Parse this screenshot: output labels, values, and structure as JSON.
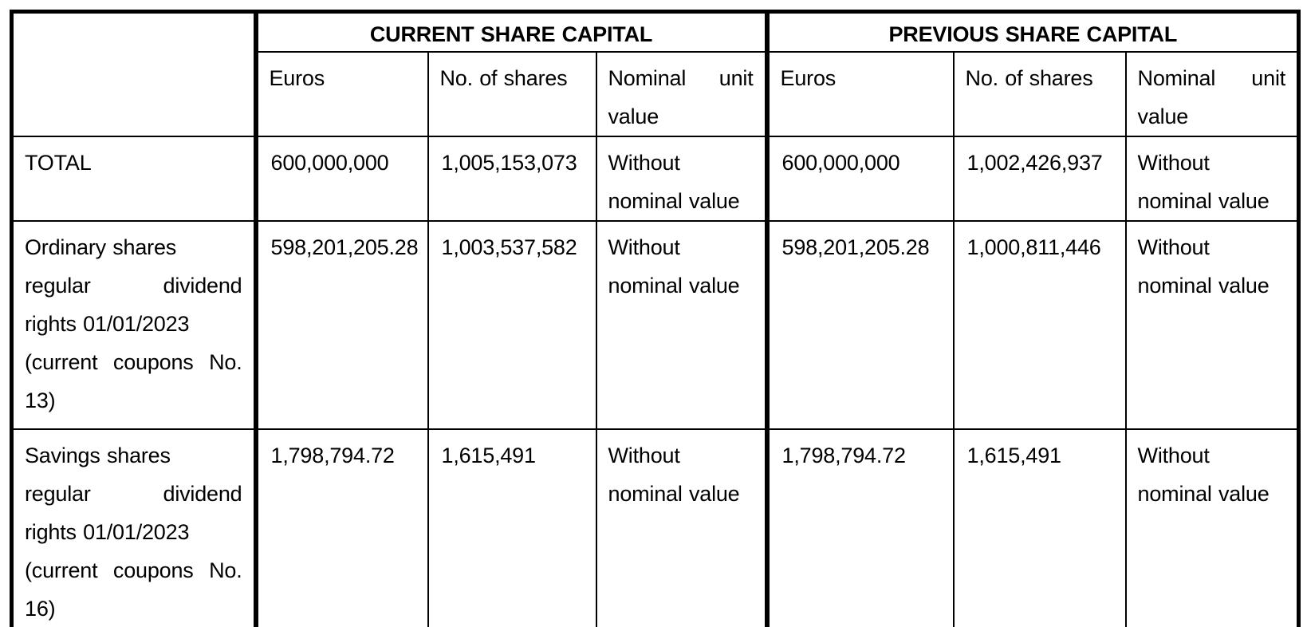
{
  "table": {
    "sections": [
      {
        "title": "CURRENT SHARE CAPITAL",
        "col_euros": "Euros",
        "col_shares": "No. of shares",
        "col_nominal_lines": [
          {
            "t": "Nominal unit",
            "j": true
          },
          {
            "t": "value",
            "j": false
          }
        ]
      },
      {
        "title": "PREVIOUS SHARE CAPITAL",
        "col_euros": "Euros",
        "col_shares": "No. of shares",
        "col_nominal_lines": [
          {
            "t": "Nominal unit",
            "j": true
          },
          {
            "t": "value",
            "j": false
          }
        ]
      }
    ],
    "rows": [
      {
        "label_lines": [
          {
            "t": "TOTAL",
            "j": false
          }
        ],
        "current": {
          "euros": "600,000,000",
          "shares": "1,005,153,073",
          "nominal_lines": [
            {
              "t": "Without",
              "j": false
            },
            {
              "t": "nominal value",
              "j": false
            }
          ]
        },
        "previous": {
          "euros": "600,000,000",
          "shares": "1,002,426,937",
          "nominal_lines": [
            {
              "t": "Without",
              "j": false
            },
            {
              "t": "nominal value",
              "j": false
            }
          ]
        }
      },
      {
        "label_lines": [
          {
            "t": "Ordinary shares",
            "j": false
          },
          {
            "t": "regular dividend",
            "j": true
          },
          {
            "t": "rights 01/01/2023",
            "j": false
          },
          {
            "t": "(current coupons No.",
            "j": true
          },
          {
            "t": "13)",
            "j": false
          }
        ],
        "current": {
          "euros": "598,201,205.28",
          "shares": "1,003,537,582",
          "nominal_lines": [
            {
              "t": "Without",
              "j": false
            },
            {
              "t": "nominal value",
              "j": false
            }
          ]
        },
        "previous": {
          "euros": "598,201,205.28",
          "shares": "1,000,811,446",
          "nominal_lines": [
            {
              "t": "Without",
              "j": false
            },
            {
              "t": "nominal value",
              "j": false
            }
          ]
        }
      },
      {
        "label_lines": [
          {
            "t": "Savings shares",
            "j": false
          },
          {
            "t": "regular dividend",
            "j": true
          },
          {
            "t": "rights 01/01/2023",
            "j": false
          },
          {
            "t": "(current coupons No.",
            "j": true
          },
          {
            "t": "16)",
            "j": false
          }
        ],
        "current": {
          "euros": "1,798,794.72",
          "shares": "1,615,491",
          "nominal_lines": [
            {
              "t": "Without",
              "j": false
            },
            {
              "t": "nominal value",
              "j": false
            }
          ]
        },
        "previous": {
          "euros": "1,798,794.72",
          "shares": "1,615,491",
          "nominal_lines": [
            {
              "t": "Without",
              "j": false
            },
            {
              "t": "nominal value",
              "j": false
            }
          ]
        }
      }
    ]
  }
}
